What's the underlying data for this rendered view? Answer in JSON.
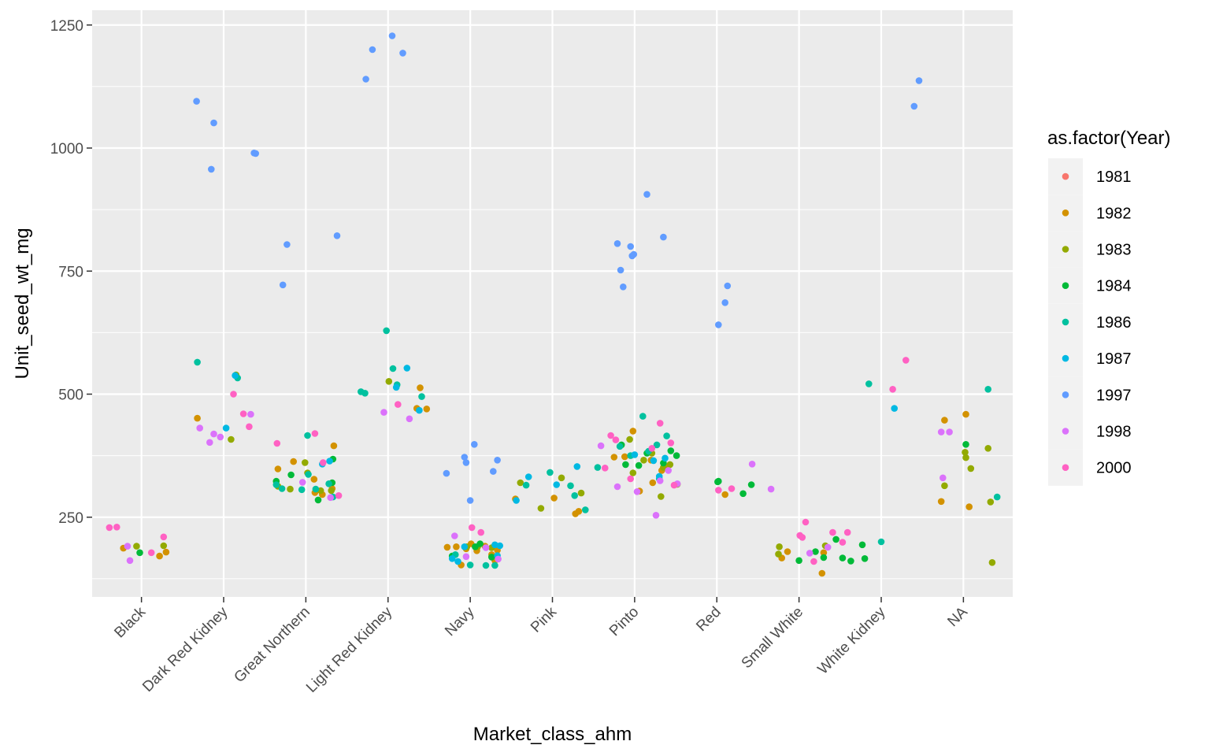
{
  "chart_data": {
    "type": "scatter",
    "title": "",
    "xlabel": "Market_class_ahm",
    "ylabel": "Unit_seed_wt_mg",
    "categories": [
      "Black",
      "Dark Red Kidney",
      "Great Northern",
      "Light Red Kidney",
      "Navy",
      "Pink",
      "Pinto",
      "Red",
      "Small White",
      "White Kidney",
      "NA"
    ],
    "ylim": [
      88,
      1280
    ],
    "yticks": [
      250,
      500,
      750,
      1000,
      1250
    ],
    "grid": true,
    "legend": {
      "title": "as.factor(Year)",
      "placement": "right",
      "entries": [
        {
          "name": "1981",
          "color": "#F8766D"
        },
        {
          "name": "1982",
          "color": "#D39200"
        },
        {
          "name": "1983",
          "color": "#93AA00"
        },
        {
          "name": "1984",
          "color": "#00BA38"
        },
        {
          "name": "1986",
          "color": "#00C19F"
        },
        {
          "name": "1987",
          "color": "#00B9E3"
        },
        {
          "name": "1997",
          "color": "#619CFF"
        },
        {
          "name": "1998",
          "color": "#DB72FB"
        },
        {
          "name": "2000",
          "color": "#FF61C3"
        }
      ]
    },
    "series": [
      {
        "name": "1982",
        "points": [
          [
            0.78,
            187
          ],
          [
            1.22,
            171
          ],
          [
            1.3,
            179
          ],
          [
            1.68,
            451
          ],
          [
            4.39,
            513
          ],
          [
            2.66,
            348
          ],
          [
            2.85,
            363
          ],
          [
            3.1,
            327
          ],
          [
            3.11,
            300
          ],
          [
            3.34,
            395
          ],
          [
            3.32,
            308
          ],
          [
            3.2,
            296
          ],
          [
            4.35,
            471
          ],
          [
            4.47,
            470
          ],
          [
            4.72,
            189
          ],
          [
            4.83,
            190
          ],
          [
            4.95,
            186
          ],
          [
            5.08,
            182
          ],
          [
            5.01,
            196
          ],
          [
            5.18,
            191
          ],
          [
            4.89,
            153
          ],
          [
            5.3,
            162
          ],
          [
            5.33,
            183
          ],
          [
            5.26,
            174
          ],
          [
            5.55,
            287
          ],
          [
            6.02,
            289
          ],
          [
            6.28,
            257
          ],
          [
            6.32,
            262
          ],
          [
            6.75,
            372
          ],
          [
            6.88,
            373
          ],
          [
            6.98,
            425
          ],
          [
            7.06,
            303
          ],
          [
            7.22,
            320
          ],
          [
            7.33,
            345
          ],
          [
            7.37,
            353
          ],
          [
            7.2,
            366
          ],
          [
            8.1,
            296
          ],
          [
            8.79,
            167
          ],
          [
            8.86,
            180
          ],
          [
            9.28,
            136
          ],
          [
            9.3,
            178
          ],
          [
            10.73,
            282
          ],
          [
            10.77,
            447
          ],
          [
            11.03,
            459
          ],
          [
            11.07,
            271
          ]
        ]
      },
      {
        "name": "1983",
        "points": [
          [
            0.94,
            191
          ],
          [
            1.27,
            192
          ],
          [
            2.09,
            408
          ],
          [
            2.15,
            539
          ],
          [
            2.66,
            313
          ],
          [
            2.81,
            307
          ],
          [
            2.99,
            361
          ],
          [
            3.02,
            340
          ],
          [
            3.18,
            304
          ],
          [
            3.31,
            304
          ],
          [
            4.01,
            526
          ],
          [
            4.96,
            190
          ],
          [
            5.09,
            190
          ],
          [
            5.26,
            188
          ],
          [
            5.61,
            320
          ],
          [
            5.86,
            268
          ],
          [
            6.11,
            330
          ],
          [
            6.35,
            299
          ],
          [
            6.94,
            408
          ],
          [
            6.98,
            340
          ],
          [
            7.11,
            366
          ],
          [
            7.21,
            380
          ],
          [
            7.32,
            292
          ],
          [
            7.35,
            351
          ],
          [
            7.43,
            357
          ],
          [
            7.52,
            317
          ],
          [
            8.75,
            175
          ],
          [
            8.76,
            190
          ],
          [
            9.32,
            192
          ],
          [
            10.77,
            314
          ],
          [
            11.02,
            382
          ],
          [
            11.03,
            371
          ],
          [
            11.09,
            349
          ],
          [
            11.3,
            390
          ],
          [
            11.33,
            281
          ],
          [
            11.35,
            158
          ]
        ]
      },
      {
        "name": "1984",
        "points": [
          [
            0.98,
            178
          ],
          [
            2.64,
            323
          ],
          [
            2.82,
            336
          ],
          [
            3.15,
            285
          ],
          [
            3.32,
            320
          ],
          [
            3.33,
            368
          ],
          [
            4.78,
            171
          ],
          [
            5.06,
            190
          ],
          [
            5.12,
            196
          ],
          [
            5.26,
            169
          ],
          [
            6.84,
            397
          ],
          [
            6.89,
            357
          ],
          [
            7.05,
            355
          ],
          [
            7.15,
            380
          ],
          [
            7.35,
            360
          ],
          [
            7.44,
            385
          ],
          [
            7.51,
            375
          ],
          [
            8.01,
            322
          ],
          [
            8.02,
            323
          ],
          [
            8.32,
            298
          ],
          [
            8.42,
            316
          ],
          [
            9.0,
            162
          ],
          [
            9.2,
            180
          ],
          [
            9.3,
            168
          ],
          [
            9.45,
            205
          ],
          [
            9.53,
            167
          ],
          [
            9.63,
            161
          ],
          [
            9.77,
            194
          ],
          [
            9.8,
            166
          ],
          [
            11.03,
            398
          ]
        ]
      },
      {
        "name": "1986",
        "points": [
          [
            1.68,
            565
          ],
          [
            2.17,
            533
          ],
          [
            2.64,
            316
          ],
          [
            2.71,
            308
          ],
          [
            2.95,
            306
          ],
          [
            3.03,
            337
          ],
          [
            3.12,
            307
          ],
          [
            3.33,
            291
          ],
          [
            3.02,
            416
          ],
          [
            3.28,
            318
          ],
          [
            3.67,
            505
          ],
          [
            3.72,
            502
          ],
          [
            3.98,
            629
          ],
          [
            4.06,
            552
          ],
          [
            4.11,
            519
          ],
          [
            4.41,
            495
          ],
          [
            4.82,
            174
          ],
          [
            5.0,
            153
          ],
          [
            5.19,
            152
          ],
          [
            5.3,
            152
          ],
          [
            5.68,
            315
          ],
          [
            5.97,
            341
          ],
          [
            6.22,
            314
          ],
          [
            6.27,
            294
          ],
          [
            6.4,
            265
          ],
          [
            6.55,
            351
          ],
          [
            6.82,
            394
          ],
          [
            6.95,
            375
          ],
          [
            7.1,
            455
          ],
          [
            7.17,
            384
          ],
          [
            7.27,
            397
          ],
          [
            7.3,
            328
          ],
          [
            7.39,
            415
          ],
          [
            9.85,
            521
          ],
          [
            10.0,
            200
          ],
          [
            11.3,
            510
          ],
          [
            11.41,
            291
          ]
        ]
      },
      {
        "name": "1987",
        "points": [
          [
            2.03,
            431
          ],
          [
            2.14,
            538
          ],
          [
            3.2,
            358
          ],
          [
            3.29,
            364
          ],
          [
            4.1,
            514
          ],
          [
            4.23,
            553
          ],
          [
            4.38,
            467
          ],
          [
            4.78,
            166
          ],
          [
            4.85,
            160
          ],
          [
            4.93,
            190
          ],
          [
            5.3,
            194
          ],
          [
            5.36,
            192
          ],
          [
            5.33,
            172
          ],
          [
            5.56,
            284
          ],
          [
            5.71,
            332
          ],
          [
            6.05,
            316
          ],
          [
            6.3,
            353
          ],
          [
            7.0,
            377
          ],
          [
            7.23,
            365
          ],
          [
            7.3,
            333
          ],
          [
            7.37,
            370
          ],
          [
            10.16,
            471
          ]
        ]
      },
      {
        "name": "1997",
        "points": [
          [
            1.67,
            1095
          ],
          [
            1.85,
            957
          ],
          [
            1.88,
            1051
          ],
          [
            2.37,
            990
          ],
          [
            2.39,
            989
          ],
          [
            2.72,
            722
          ],
          [
            2.77,
            804
          ],
          [
            3.38,
            822
          ],
          [
            3.73,
            1140
          ],
          [
            3.81,
            1200
          ],
          [
            4.05,
            1228
          ],
          [
            4.18,
            1193
          ],
          [
            4.71,
            339
          ],
          [
            4.93,
            372
          ],
          [
            4.95,
            361
          ],
          [
            5.05,
            398
          ],
          [
            5.0,
            284
          ],
          [
            5.33,
            366
          ],
          [
            5.28,
            343
          ],
          [
            6.79,
            806
          ],
          [
            6.83,
            752
          ],
          [
            6.86,
            718
          ],
          [
            6.95,
            800
          ],
          [
            6.97,
            781
          ],
          [
            6.99,
            784
          ],
          [
            7.15,
            906
          ],
          [
            7.35,
            819
          ],
          [
            8.02,
            641
          ],
          [
            8.1,
            686
          ],
          [
            8.13,
            720
          ],
          [
            10.4,
            1085
          ],
          [
            10.46,
            1137
          ]
        ]
      },
      {
        "name": "1998",
        "points": [
          [
            0.83,
            191
          ],
          [
            0.86,
            162
          ],
          [
            1.71,
            431
          ],
          [
            1.83,
            402
          ],
          [
            1.88,
            419
          ],
          [
            1.96,
            413
          ],
          [
            2.33,
            459
          ],
          [
            2.96,
            321
          ],
          [
            3.3,
            290
          ],
          [
            3.95,
            463
          ],
          [
            4.26,
            450
          ],
          [
            4.81,
            212
          ],
          [
            4.95,
            170
          ],
          [
            5.19,
            188
          ],
          [
            5.34,
            165
          ],
          [
            6.59,
            395
          ],
          [
            6.79,
            312
          ],
          [
            7.03,
            302
          ],
          [
            7.26,
            254
          ],
          [
            7.31,
            324
          ],
          [
            7.41,
            345
          ],
          [
            7.52,
            318
          ],
          [
            8.43,
            358
          ],
          [
            8.66,
            307
          ],
          [
            9.13,
            177
          ],
          [
            9.35,
            189
          ],
          [
            10.75,
            330
          ],
          [
            10.73,
            423
          ],
          [
            10.83,
            423
          ]
        ]
      },
      {
        "name": "2000",
        "points": [
          [
            0.61,
            229
          ],
          [
            0.7,
            230
          ],
          [
            1.12,
            178
          ],
          [
            1.27,
            210
          ],
          [
            2.12,
            500
          ],
          [
            2.24,
            460
          ],
          [
            2.31,
            434
          ],
          [
            2.65,
            400
          ],
          [
            3.11,
            420
          ],
          [
            3.21,
            361
          ],
          [
            3.4,
            294
          ],
          [
            4.12,
            479
          ],
          [
            5.02,
            229
          ],
          [
            5.13,
            219
          ],
          [
            6.64,
            350
          ],
          [
            6.71,
            416
          ],
          [
            6.77,
            407
          ],
          [
            6.95,
            328
          ],
          [
            7.21,
            390
          ],
          [
            7.31,
            441
          ],
          [
            7.44,
            401
          ],
          [
            7.48,
            315
          ],
          [
            8.02,
            305
          ],
          [
            8.18,
            308
          ],
          [
            9.01,
            213
          ],
          [
            9.04,
            209
          ],
          [
            9.08,
            240
          ],
          [
            9.18,
            160
          ],
          [
            9.41,
            219
          ],
          [
            9.53,
            199
          ],
          [
            9.59,
            219
          ],
          [
            10.14,
            510
          ],
          [
            10.3,
            569
          ]
        ]
      }
    ]
  }
}
